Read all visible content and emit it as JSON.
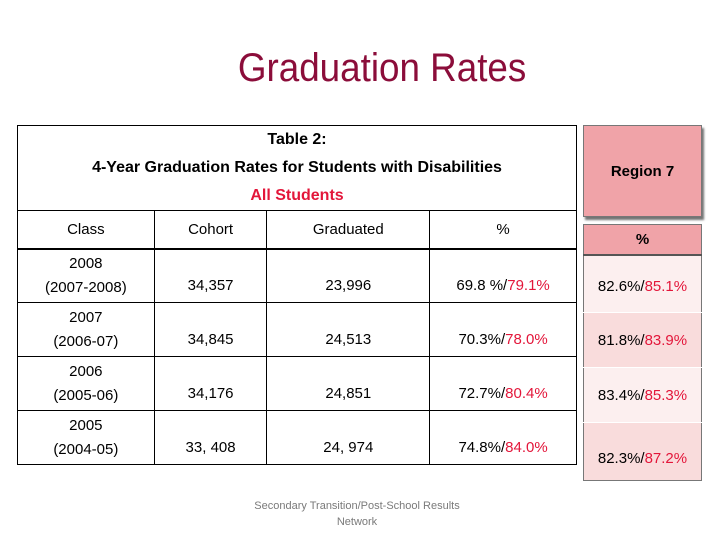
{
  "slide": {
    "title": "Graduation Rates",
    "footer": "Secondary Transition/Post-School Results Network"
  },
  "table": {
    "caption_line1": "Table 2:",
    "caption_line2": "4-Year Graduation Rates for Students with Disabilities",
    "caption_line3": "All Students",
    "headers": {
      "class": "Class",
      "cohort": "Cohort",
      "graduated": "Graduated",
      "percent": "%"
    },
    "rows": [
      {
        "year": "2008",
        "span": "(2007-2008)",
        "cohort": "34,357",
        "graduated": "23,996",
        "pct_base": "69.8 %/",
        "pct_red": "79.1%"
      },
      {
        "year": "2007",
        "span": "(2006-07)",
        "cohort": "34,845",
        "graduated": "24,513",
        "pct_base": "70.3%/",
        "pct_red": "78.0%"
      },
      {
        "year": "2006",
        "span": "(2005-06)",
        "cohort": "34,176",
        "graduated": "24,851",
        "pct_base": "72.7%/",
        "pct_red": "80.4%"
      },
      {
        "year": "2005",
        "span": "(2004-05)",
        "cohort": "33, 408",
        "graduated": "24, 974",
        "pct_base": "74.8%/",
        "pct_red": "84.0%"
      }
    ]
  },
  "region": {
    "title": "Region 7",
    "header": "%",
    "rows": [
      {
        "base": "82.6%/",
        "red": "85.1%"
      },
      {
        "base": "81.8%/",
        "red": "83.9%"
      },
      {
        "base": "83.4%/",
        "red": "85.3%"
      },
      {
        "base": "82.3%/",
        "red": "87.2%"
      }
    ]
  },
  "colors": {
    "title": "#8b0d3a",
    "accent_red": "#e3163a",
    "region_header_fill": "#f0a3a8"
  }
}
